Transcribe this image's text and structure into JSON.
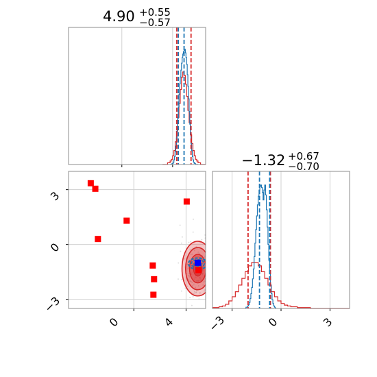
{
  "titles": [
    {
      "main": "4.90",
      "plus": "+0.55",
      "minus": "−0.57"
    },
    {
      "main": "−1.32",
      "plus": "+0.67",
      "minus": "−0.70"
    }
  ],
  "colors": {
    "red": "#d62728",
    "blue": "#1f77b4",
    "marker_red": "#ff0000",
    "marker_blue": "#0000ff",
    "grid": "#d0d0d0"
  },
  "chart_data": [
    {
      "type": "histogram",
      "panel": "param-1-marginal",
      "x_range": [
        -4.2,
        6.6
      ],
      "quantile_lines": {
        "red": [
          4.33,
          5.45
        ],
        "blue": [
          4.45,
          4.9
        ]
      },
      "red_hist": {
        "x0": 3.2,
        "x1": 6.6,
        "bins": 34,
        "values": [
          0,
          0,
          0,
          0,
          1,
          1,
          2,
          3,
          5,
          8,
          13,
          19,
          27,
          35,
          43,
          50,
          53,
          51,
          46,
          39,
          31,
          24,
          17,
          12,
          8,
          5,
          3,
          2,
          1,
          1,
          0,
          0,
          0,
          0
        ]
      },
      "blue_hist": {
        "x0": 3.8,
        "x1": 6.0,
        "bins": 44,
        "values": [
          0,
          0,
          0,
          1,
          1,
          2,
          4,
          7,
          11,
          16,
          23,
          31,
          40,
          50,
          61,
          70,
          76,
          82,
          88,
          93,
          96,
          98,
          99,
          100,
          97,
          93,
          87,
          78,
          68,
          57,
          46,
          35,
          26,
          18,
          12,
          7,
          4,
          2,
          1,
          1,
          0,
          0,
          0,
          0
        ]
      }
    },
    {
      "type": "histogram",
      "panel": "param-2-marginal",
      "x_range": [
        -4.2,
        4.2
      ],
      "x_ticks": [
        "−3",
        "0",
        "3"
      ],
      "quantile_lines": {
        "red": [
          -2.02,
          -0.65
        ],
        "blue": [
          -1.32,
          -0.7
        ]
      },
      "red_hist": {
        "x0": -4.2,
        "x1": 4.2,
        "bins": 42,
        "values": [
          1,
          1,
          2,
          3,
          5,
          9,
          14,
          20,
          28,
          36,
          44,
          51,
          55,
          55,
          51,
          44,
          36,
          28,
          20,
          14,
          9,
          6,
          4,
          3,
          2,
          2,
          1,
          1,
          1,
          1,
          0,
          0,
          0,
          0,
          0,
          0,
          0,
          0,
          0,
          0,
          0,
          0
        ]
      },
      "blue_hist": {
        "x0": -2.2,
        "x1": -0.3,
        "bins": 38,
        "values": [
          0,
          1,
          1,
          2,
          3,
          5,
          8,
          12,
          17,
          24,
          32,
          42,
          53,
          64,
          75,
          84,
          91,
          96,
          99,
          100,
          98,
          94,
          88,
          96,
          100,
          92,
          80,
          66,
          52,
          39,
          28,
          19,
          12,
          7,
          4,
          2,
          1,
          0
        ]
      }
    },
    {
      "type": "scatter-contour",
      "panel": "joint",
      "x_range": [
        -5,
        5.5
      ],
      "y_range": [
        -3.5,
        4
      ],
      "x_ticks": [
        "0",
        "4"
      ],
      "y_ticks": [
        "3",
        "0",
        "−3"
      ],
      "contour_center": {
        "x": 4.9,
        "y": -1.32
      },
      "contour_sigma": {
        "x": 0.55,
        "y": 0.68
      },
      "red_markers": [
        {
          "x": -3.3,
          "y": 3.35
        },
        {
          "x": -2.95,
          "y": 3.05
        },
        {
          "x": -0.55,
          "y": 1.3
        },
        {
          "x": 4.05,
          "y": 2.35
        },
        {
          "x": -2.75,
          "y": 0.3
        },
        {
          "x": 1.45,
          "y": -1.15
        },
        {
          "x": 1.55,
          "y": -1.9
        },
        {
          "x": 1.5,
          "y": -2.75
        },
        {
          "x": 4.95,
          "y": -1.4
        }
      ],
      "blue_marker": {
        "x": 4.9,
        "y": -1.0
      }
    }
  ]
}
